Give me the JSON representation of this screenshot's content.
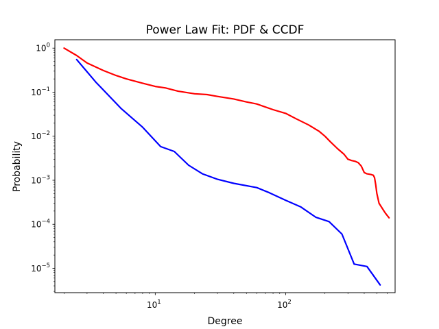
{
  "chart_data": {
    "type": "line",
    "title": "Power Law Fit: PDF & CCDF",
    "xlabel": "Degree",
    "ylabel": "Probability",
    "xscale": "log",
    "yscale": "log",
    "xlim": [
      1.7,
      690
    ],
    "ylim": [
      2.8e-06,
      1.55
    ],
    "grid": false,
    "x_ticks": [
      {
        "value": 10,
        "base": "10",
        "exp": "1"
      },
      {
        "value": 100,
        "base": "10",
        "exp": "2"
      }
    ],
    "y_ticks": [
      {
        "value": 1e-05,
        "base": "10",
        "exp": "−5"
      },
      {
        "value": 0.0001,
        "base": "10",
        "exp": "−4"
      },
      {
        "value": 0.001,
        "base": "10",
        "exp": "−3"
      },
      {
        "value": 0.01,
        "base": "10",
        "exp": "−2"
      },
      {
        "value": 0.1,
        "base": "10",
        "exp": "−1"
      },
      {
        "value": 1,
        "base": "10",
        "exp": "0"
      }
    ],
    "series": [
      {
        "color": "#ff0000",
        "x": [
          2.0,
          2.5,
          3.0,
          4.0,
          5.0,
          6.0,
          8.0,
          10.0,
          12.0,
          15.0,
          20.0,
          25.0,
          30.0,
          40.0,
          50.0,
          60.0,
          80.0,
          100.0,
          120.0,
          150.0,
          180.0,
          200.0,
          220.0,
          250.0,
          280.0,
          300.0,
          320.0,
          340.0,
          360.0,
          380.0,
          400.0,
          420.0,
          450.0,
          470.0,
          480.0,
          490.0,
          500.0,
          520.0,
          550.0,
          580.0,
          620.0
        ],
        "y": [
          1.0,
          0.68,
          0.46,
          0.31,
          0.24,
          0.2,
          0.16,
          0.135,
          0.125,
          0.105,
          0.092,
          0.088,
          0.08,
          0.07,
          0.06,
          0.054,
          0.04,
          0.033,
          0.025,
          0.018,
          0.013,
          0.01,
          0.0075,
          0.0052,
          0.0039,
          0.003,
          0.0028,
          0.0027,
          0.0025,
          0.0021,
          0.0015,
          0.0014,
          0.00135,
          0.0013,
          0.00115,
          0.0008,
          0.0005,
          0.0003,
          0.00023,
          0.00018,
          0.00014
        ]
      },
      {
        "color": "#0000ff",
        "x": [
          2.5,
          3.5,
          5.5,
          8.0,
          11.0,
          14.0,
          18.0,
          23.0,
          30.0,
          40.0,
          60.0,
          75.0,
          100.0,
          130.0,
          170.0,
          215.0,
          270.0,
          335.0,
          420.0,
          530.0
        ],
        "y": [
          0.55,
          0.17,
          0.042,
          0.016,
          0.0058,
          0.0045,
          0.0022,
          0.0014,
          0.00105,
          0.00085,
          0.00068,
          0.00052,
          0.00035,
          0.00025,
          0.000145,
          0.000115,
          6e-05,
          1.25e-05,
          1.1e-05,
          4.2e-06
        ]
      }
    ]
  }
}
